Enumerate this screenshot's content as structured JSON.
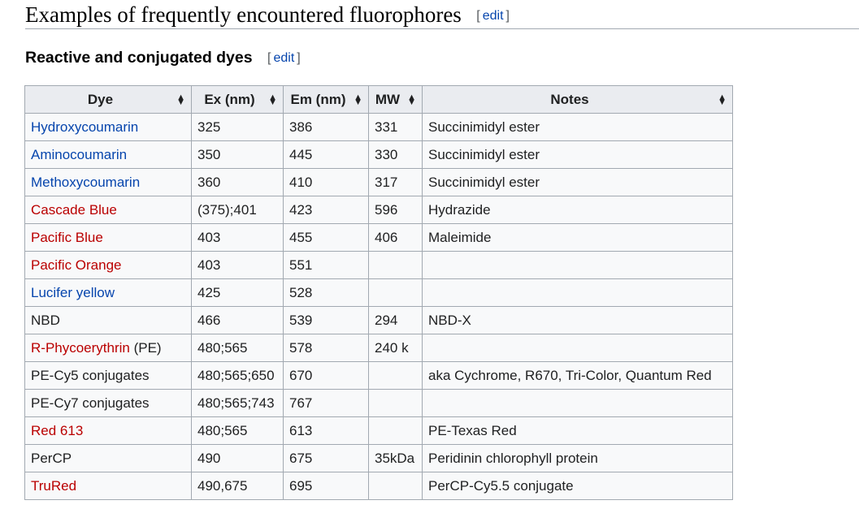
{
  "section": {
    "title": "Examples of frequently encountered fluorophores",
    "edit_open": "[",
    "edit_label": "edit",
    "edit_close": "]"
  },
  "subsection": {
    "title": "Reactive and conjugated dyes",
    "edit_open": "[",
    "edit_label": "edit",
    "edit_close": "]"
  },
  "table": {
    "headers": [
      "Dye",
      "Ex (nm)",
      "Em (nm)",
      "MW",
      "Notes"
    ],
    "rows": [
      {
        "dye": "Hydroxycoumarin",
        "dye_suffix": "",
        "link": "blue",
        "ex": "325",
        "em": "386",
        "mw": "331",
        "notes": "Succinimidyl ester"
      },
      {
        "dye": "Aminocoumarin",
        "dye_suffix": "",
        "link": "blue",
        "ex": "350",
        "em": "445",
        "mw": "330",
        "notes": "Succinimidyl ester"
      },
      {
        "dye": "Methoxycoumarin",
        "dye_suffix": "",
        "link": "blue",
        "ex": "360",
        "em": "410",
        "mw": "317",
        "notes": "Succinimidyl ester"
      },
      {
        "dye": "Cascade Blue",
        "dye_suffix": "",
        "link": "red",
        "ex": "(375);401",
        "em": "423",
        "mw": "596",
        "notes": "Hydrazide"
      },
      {
        "dye": "Pacific Blue",
        "dye_suffix": "",
        "link": "red",
        "ex": "403",
        "em": "455",
        "mw": "406",
        "notes": "Maleimide"
      },
      {
        "dye": "Pacific Orange",
        "dye_suffix": "",
        "link": "red",
        "ex": "403",
        "em": "551",
        "mw": "",
        "notes": ""
      },
      {
        "dye": "Lucifer yellow",
        "dye_suffix": "",
        "link": "blue",
        "ex": "425",
        "em": "528",
        "mw": "",
        "notes": ""
      },
      {
        "dye": "NBD",
        "dye_suffix": "",
        "link": "none",
        "ex": "466",
        "em": "539",
        "mw": "294",
        "notes": "NBD-X"
      },
      {
        "dye": "R-Phycoerythrin",
        "dye_suffix": " (PE)",
        "link": "red",
        "ex": "480;565",
        "em": "578",
        "mw": "240 k",
        "notes": ""
      },
      {
        "dye": "PE-Cy5 conjugates",
        "dye_suffix": "",
        "link": "none",
        "ex": "480;565;650",
        "em": "670",
        "mw": "",
        "notes": "aka Cychrome, R670, Tri-Color, Quantum Red"
      },
      {
        "dye": "PE-Cy7 conjugates",
        "dye_suffix": "",
        "link": "none",
        "ex": "480;565;743",
        "em": "767",
        "mw": "",
        "notes": ""
      },
      {
        "dye": "Red 613",
        "dye_suffix": "",
        "link": "red",
        "ex": "480;565",
        "em": "613",
        "mw": "",
        "notes": "PE-Texas Red"
      },
      {
        "dye": "PerCP",
        "dye_suffix": "",
        "link": "none",
        "ex": "490",
        "em": "675",
        "mw": "35kDa",
        "notes": "Peridinin chlorophyll protein"
      },
      {
        "dye": "TruRed",
        "dye_suffix": "",
        "link": "red",
        "ex": "490,675",
        "em": "695",
        "mw": "",
        "notes": "PerCP-Cy5.5 conjugate"
      }
    ]
  },
  "colors": {
    "link_blue": "#0645ad",
    "link_red": "#ba0000",
    "header_bg": "#eaecf0",
    "cell_bg": "#f8f9fa",
    "border": "#a2a9b1"
  },
  "icons": {
    "sort": "sort-arrows-icon"
  }
}
